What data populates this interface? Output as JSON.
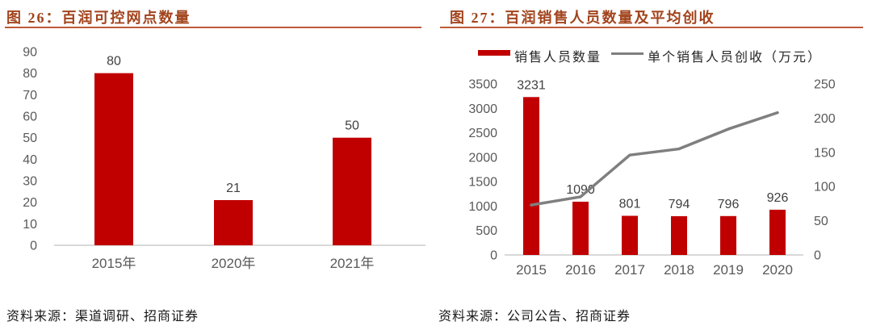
{
  "colors": {
    "bar_red": "#C00000",
    "line_gray": "#7F7F7F",
    "title_rust": "#A2441D",
    "rule_rust": "#BE5B38",
    "axis_label_gray": "#595959",
    "data_label_dark": "#404040",
    "baseline_gray": "#D9D9D9"
  },
  "left_panel": {
    "title": "图 26：百润可控网点数量",
    "source": "资料来源：渠道调研、招商证券"
  },
  "right_panel": {
    "title": "图 27：百润销售人员数量及平均创收",
    "source": "资料来源：公司公告、招商证券",
    "legend": [
      {
        "label": "销售人员数量",
        "type": "bar",
        "color": "#C00000"
      },
      {
        "label": "单个销售人员创收（万元）",
        "type": "line",
        "color": "#7F7F7F"
      }
    ]
  },
  "chart_data": [
    {
      "type": "bar",
      "title": "百润可控网点数量",
      "categories": [
        "2015年",
        "2020年",
        "2021年"
      ],
      "values": [
        80,
        21,
        50
      ],
      "data_labels": [
        80,
        21,
        50
      ],
      "ylim": [
        0,
        90
      ],
      "ytick_step": 10,
      "grid": false,
      "bar_color": "#C00000",
      "legend_position": "none"
    },
    {
      "type": "bar+line",
      "title": "百润销售人员数量及平均创收",
      "categories": [
        "2015",
        "2016",
        "2017",
        "2018",
        "2019",
        "2020"
      ],
      "series": [
        {
          "name": "销售人员数量",
          "type": "bar",
          "axis": "left",
          "color": "#C00000",
          "values": [
            3231,
            1090,
            801,
            794,
            796,
            926
          ],
          "data_labels": [
            3231,
            1090,
            801,
            794,
            796,
            926
          ]
        },
        {
          "name": "单个销售人员创收（万元）",
          "type": "line",
          "axis": "right",
          "color": "#7F7F7F",
          "values": [
            73,
            85,
            146,
            155,
            184,
            208
          ]
        }
      ],
      "left_ylim": [
        0,
        3500
      ],
      "left_ytick_step": 500,
      "right_ylim": [
        0,
        250
      ],
      "right_ytick_step": 50,
      "grid": false,
      "legend_position": "top"
    }
  ]
}
